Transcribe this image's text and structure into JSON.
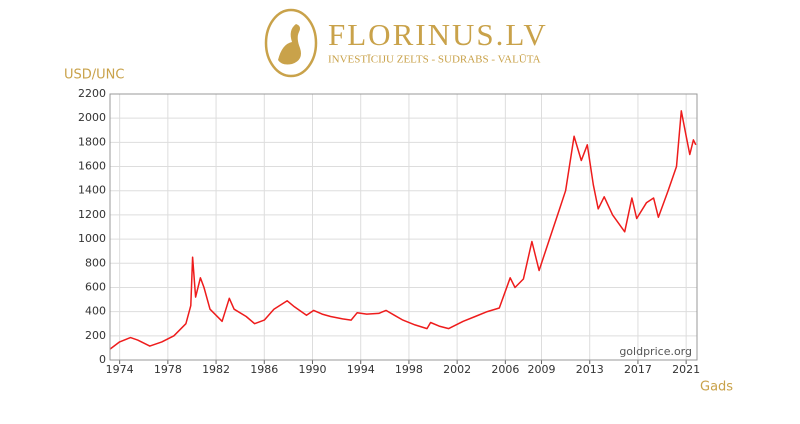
{
  "header": {
    "brand": "FLORINUS.LV",
    "tagline": "INVESTĪCIJU ZELTS - SUDRABS - VALŪTA"
  },
  "chart_data": {
    "type": "line",
    "y_label": "USD/UNC",
    "x_label": "Gads",
    "annotation": "goldprice.org",
    "color": "#ee1c1c",
    "grid": true,
    "xlim": [
      1973.2,
      2021.9
    ],
    "xticks": [
      1974,
      1978,
      1982,
      1986,
      1990,
      1994,
      1998,
      2002,
      2006,
      2009,
      2013,
      2017,
      2021
    ],
    "ylim": [
      0,
      2200
    ],
    "yticks": [
      0,
      200,
      400,
      600,
      800,
      1000,
      1200,
      1400,
      1600,
      1800,
      2000,
      2200
    ],
    "x": [
      1973.2,
      1974,
      1974.9,
      1975.5,
      1976.5,
      1977.5,
      1978.5,
      1979.5,
      1979.9,
      1980.05,
      1980.3,
      1980.7,
      1981.0,
      1981.5,
      1982.5,
      1983.1,
      1983.5,
      1984.5,
      1985.2,
      1986.0,
      1986.8,
      1987.9,
      1988.5,
      1989.5,
      1990.1,
      1990.8,
      1991.5,
      1992.5,
      1993.2,
      1993.7,
      1994.5,
      1995.5,
      1996.1,
      1996.8,
      1997.5,
      1998.5,
      1999.5,
      1999.8,
      2000.5,
      2001.3,
      2002.5,
      2003.5,
      2004.5,
      2005.5,
      2006.4,
      2006.8,
      2007.5,
      2008.2,
      2008.8,
      2009.5,
      2010.5,
      2011.0,
      2011.7,
      2012.3,
      2012.8,
      2013.3,
      2013.7,
      2014.2,
      2014.9,
      2015.9,
      2016.5,
      2016.9,
      2017.7,
      2018.3,
      2018.7,
      2019.5,
      2020.2,
      2020.6,
      2021.0,
      2021.3,
      2021.6,
      2021.8
    ],
    "values": [
      90,
      150,
      185,
      165,
      115,
      150,
      200,
      300,
      450,
      850,
      520,
      680,
      600,
      420,
      320,
      510,
      420,
      360,
      300,
      330,
      420,
      490,
      440,
      370,
      410,
      380,
      360,
      340,
      330,
      390,
      380,
      385,
      410,
      370,
      330,
      290,
      260,
      310,
      280,
      260,
      320,
      360,
      400,
      430,
      680,
      600,
      670,
      980,
      740,
      950,
      1250,
      1400,
      1850,
      1650,
      1780,
      1450,
      1250,
      1350,
      1200,
      1060,
      1340,
      1170,
      1300,
      1340,
      1180,
      1400,
      1600,
      2060,
      1850,
      1700,
      1820,
      1780
    ]
  }
}
